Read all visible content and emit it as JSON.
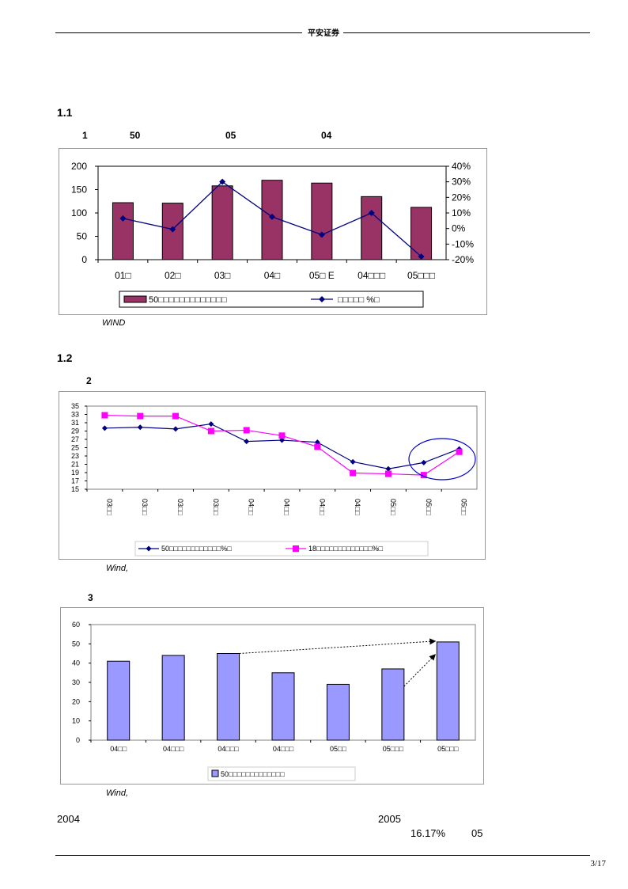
{
  "header": {
    "brand": "平安证券"
  },
  "section1": {
    "heading": "1.1",
    "fig_no": "1",
    "fig_parts": [
      "50",
      "05",
      "04"
    ],
    "source": "WIND"
  },
  "section2": {
    "heading": "1.2",
    "fig_no": "2",
    "source": "Wind,"
  },
  "section3": {
    "fig_no": "3",
    "source": "Wind,"
  },
  "body": {
    "year_a": "2004",
    "year_b": "2005",
    "pct": "16.17%",
    "tail": "05"
  },
  "footer": {
    "page": "3/17"
  },
  "chart_data": [
    {
      "type": "bar",
      "categories": [
        "01□",
        "02□",
        "03□",
        "04□",
        "05□ E",
        "04□□□",
        "05□□□"
      ],
      "series": [
        {
          "name": "50□□□□□□□□□□□□□",
          "kind": "bar",
          "axis": "left",
          "values": [
            122,
            121,
            158,
            170,
            164,
            135,
            112
          ],
          "color": "#993366"
        },
        {
          "name": "□□□□□ %□",
          "kind": "line",
          "axis": "right",
          "values": [
            6.5,
            -0.5,
            30,
            7.5,
            -4,
            10,
            -18
          ],
          "color": "#000080"
        }
      ],
      "ylim": [
        0,
        200
      ],
      "yticks": [
        "0",
        "50",
        "100",
        "150",
        "200"
      ],
      "y2lim": [
        -20,
        40
      ],
      "y2ticks": [
        "-20%",
        "-10%",
        "0%",
        "10%",
        "20%",
        "30%",
        "40%"
      ],
      "legend": "bottom"
    },
    {
      "type": "line",
      "categories": [
        "03□□",
        "03□□",
        "03□□",
        "03□□",
        "04□□",
        "04□□",
        "04□□",
        "04□□",
        "05□□",
        "05□□",
        "05□□"
      ],
      "series": [
        {
          "name": "50□□□□□□□□□□□□%□",
          "values": [
            29.7,
            29.9,
            29.5,
            30.7,
            26.5,
            26.8,
            26.3,
            21.6,
            19.9,
            21.4,
            24.7
          ],
          "color": "#000080",
          "marker": "diamond"
        },
        {
          "name": "18□□□□□□□□□□□□□%□",
          "values": [
            32.8,
            32.6,
            32.6,
            29.0,
            29.2,
            27.9,
            25.2,
            18.9,
            18.7,
            18.4,
            24.0
          ],
          "color": "#FF00FF",
          "marker": "square"
        }
      ],
      "ylim": [
        15,
        35
      ],
      "yticks": [
        "15",
        "17",
        "19",
        "21",
        "23",
        "25",
        "27",
        "29",
        "31",
        "33",
        "35"
      ],
      "legend": "bottom"
    },
    {
      "type": "bar",
      "categories": [
        "04□□",
        "04□□□",
        "04□□□",
        "04□□□",
        "05□□",
        "05□□□",
        "05□□□"
      ],
      "series": [
        {
          "name": "50□□□□□□□□□□□□□",
          "values": [
            41,
            44,
            45,
            35,
            29,
            37,
            51
          ],
          "color": "#9999FF"
        }
      ],
      "ylim": [
        0,
        60
      ],
      "yticks": [
        "0",
        "10",
        "20",
        "30",
        "40",
        "50",
        "60"
      ],
      "legend": "bottom"
    }
  ]
}
